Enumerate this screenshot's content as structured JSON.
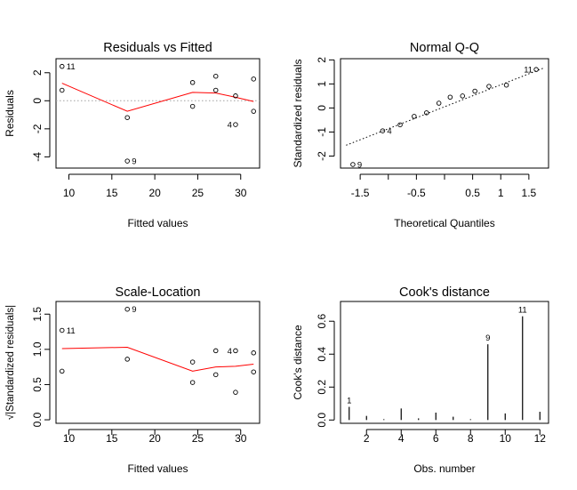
{
  "chart_data": [
    {
      "type": "scatter",
      "title": "Residuals vs Fitted",
      "xlabel": "Fitted values",
      "ylabel": "Residuals",
      "xlim": [
        8.5,
        32.2
      ],
      "ylim": [
        -4.8,
        3.0
      ],
      "xticks": [
        10,
        15,
        20,
        25,
        30
      ],
      "yticks": [
        -4,
        -2,
        0,
        2
      ],
      "reference_line": {
        "y": 0,
        "style": "dotted",
        "color": "#a0a0a0"
      },
      "points": [
        {
          "x": 9.2,
          "y": 2.45,
          "label": "11"
        },
        {
          "x": 9.2,
          "y": 0.75,
          "label": ""
        },
        {
          "x": 16.8,
          "y": -1.2,
          "label": ""
        },
        {
          "x": 16.8,
          "y": -4.3,
          "label": "9"
        },
        {
          "x": 24.4,
          "y": 1.3,
          "label": ""
        },
        {
          "x": 24.4,
          "y": -0.4,
          "label": ""
        },
        {
          "x": 27.1,
          "y": 1.75,
          "label": ""
        },
        {
          "x": 27.1,
          "y": 0.75,
          "label": ""
        },
        {
          "x": 29.4,
          "y": 0.35,
          "label": ""
        },
        {
          "x": 29.4,
          "y": -1.7,
          "label": "4"
        },
        {
          "x": 31.5,
          "y": 1.55,
          "label": ""
        },
        {
          "x": 31.5,
          "y": -0.75,
          "label": ""
        }
      ],
      "smooth": {
        "color": "#ff0000",
        "x": [
          9.2,
          16.8,
          24.4,
          27.1,
          29.4,
          31.5
        ],
        "y": [
          1.25,
          -0.75,
          0.6,
          0.55,
          0.25,
          -0.05
        ]
      }
    },
    {
      "type": "scatter",
      "title": "Normal Q-Q",
      "xlabel": "Theoretical Quantiles",
      "ylabel": "Standardized residuals",
      "xlim": [
        -1.85,
        1.85
      ],
      "ylim": [
        -2.5,
        2.05
      ],
      "xticks": [
        -1.5,
        -0.5,
        0.5,
        1.0,
        1.5
      ],
      "extra_ticks": [
        -1.0,
        0.0
      ],
      "yticks": [
        -2,
        -1,
        0,
        1,
        2
      ],
      "reference_line": {
        "x": [
          -1.75,
          1.75
        ],
        "y": [
          -1.55,
          1.65
        ],
        "style": "dotted",
        "color": "#000000"
      },
      "points": [
        {
          "x": -1.63,
          "y": -2.35,
          "label": "9"
        },
        {
          "x": -1.1,
          "y": -0.95,
          "label": "4"
        },
        {
          "x": -0.79,
          "y": -0.7,
          "label": ""
        },
        {
          "x": -0.54,
          "y": -0.35,
          "label": ""
        },
        {
          "x": -0.32,
          "y": -0.2,
          "label": ""
        },
        {
          "x": -0.1,
          "y": 0.2,
          "label": ""
        },
        {
          "x": 0.1,
          "y": 0.45,
          "label": ""
        },
        {
          "x": 0.32,
          "y": 0.5,
          "label": ""
        },
        {
          "x": 0.54,
          "y": 0.7,
          "label": ""
        },
        {
          "x": 0.79,
          "y": 0.9,
          "label": ""
        },
        {
          "x": 1.1,
          "y": 0.95,
          "label": ""
        },
        {
          "x": 1.63,
          "y": 1.6,
          "label": "11"
        }
      ]
    },
    {
      "type": "scatter",
      "title": "Scale-Location",
      "xlabel": "Fitted values",
      "ylabel": "√|Standardized residuals|",
      "xlim": [
        8.5,
        32.2
      ],
      "ylim": [
        -0.05,
        1.68
      ],
      "xticks": [
        10,
        15,
        20,
        25,
        30
      ],
      "yticks": [
        0.0,
        0.5,
        1.0,
        1.5
      ],
      "points": [
        {
          "x": 9.2,
          "y": 1.27,
          "label": "11"
        },
        {
          "x": 9.2,
          "y": 0.69,
          "label": ""
        },
        {
          "x": 16.8,
          "y": 1.57,
          "label": "9"
        },
        {
          "x": 16.8,
          "y": 0.86,
          "label": ""
        },
        {
          "x": 24.4,
          "y": 0.82,
          "label": ""
        },
        {
          "x": 24.4,
          "y": 0.53,
          "label": ""
        },
        {
          "x": 27.1,
          "y": 0.98,
          "label": ""
        },
        {
          "x": 27.1,
          "y": 0.64,
          "label": ""
        },
        {
          "x": 29.4,
          "y": 0.98,
          "label": "4"
        },
        {
          "x": 29.4,
          "y": 0.39,
          "label": ""
        },
        {
          "x": 31.5,
          "y": 0.95,
          "label": ""
        },
        {
          "x": 31.5,
          "y": 0.68,
          "label": ""
        }
      ],
      "smooth": {
        "color": "#ff0000",
        "x": [
          9.2,
          16.8,
          24.4,
          27.1,
          29.4,
          31.5
        ],
        "y": [
          1.01,
          1.03,
          0.69,
          0.75,
          0.76,
          0.79
        ]
      }
    },
    {
      "type": "bar",
      "title": "Cook's distance",
      "xlabel": "Obs. number",
      "ylabel": "Cook's distance",
      "xlim": [
        0.5,
        12.5
      ],
      "ylim": [
        -0.02,
        0.72
      ],
      "xticks": [
        2,
        4,
        6,
        8,
        10,
        12
      ],
      "yticks": [
        0.0,
        0.2,
        0.4,
        0.6
      ],
      "x": [
        1,
        2,
        3,
        4,
        5,
        6,
        7,
        8,
        9,
        10,
        11,
        12
      ],
      "values": [
        0.08,
        0.025,
        0.005,
        0.07,
        0.01,
        0.045,
        0.02,
        0.005,
        0.46,
        0.04,
        0.63,
        0.05
      ],
      "labels": [
        {
          "x": 1,
          "label": "1"
        },
        {
          "x": 9,
          "label": "9"
        },
        {
          "x": 11,
          "label": "11"
        }
      ]
    }
  ]
}
